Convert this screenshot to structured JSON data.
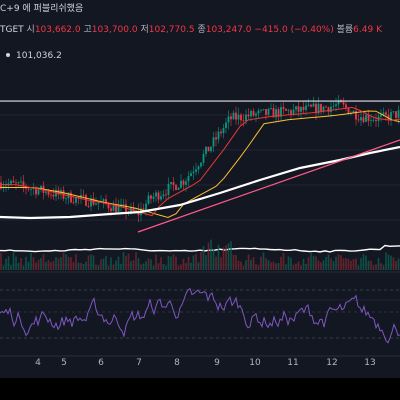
{
  "header": {
    "line1": "C+9 에 퍼블리쉬했음",
    "ticker": "TGET",
    "open_label": "시",
    "open": "103,662.0",
    "high_label": "고",
    "high": "103,700.0",
    "low_label": "저",
    "low": "102,770.5",
    "close_label": "종",
    "close": "103,247.0",
    "change": "−415.0 (−0.40%)",
    "volume_label": "볼륨",
    "volume": "6.49 K",
    "indicator_value": "101,036.2"
  },
  "colors": {
    "background": "#131722",
    "up": "#089981",
    "down": "#f23645",
    "osc": "#7e57c2",
    "ma_red": "#e53935",
    "ma_yellow": "#fbc02d",
    "ma_white": "#ffffff"
  },
  "chart_data": {
    "type": "candlestick",
    "x_ticks": [
      "4",
      "5",
      "6",
      "7",
      "8",
      "9",
      "10",
      "11",
      "12",
      "13"
    ],
    "price_start": 99600,
    "price_end": 103247,
    "resistance_level": 103900,
    "oscillator_bands": {
      "upper": 70,
      "middle": 50,
      "lower": 30
    }
  }
}
